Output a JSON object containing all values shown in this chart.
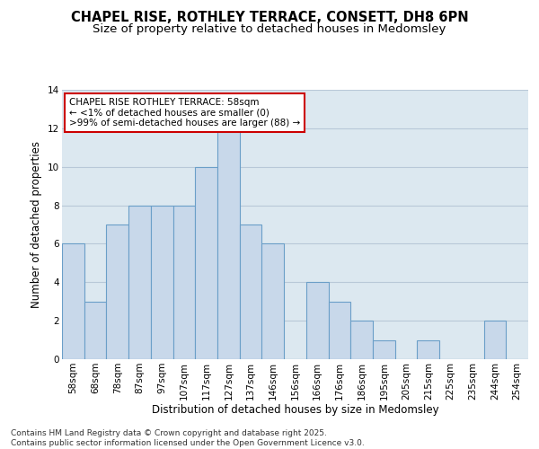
{
  "title_line1": "CHAPEL RISE, ROTHLEY TERRACE, CONSETT, DH8 6PN",
  "title_line2": "Size of property relative to detached houses in Medomsley",
  "xlabel": "Distribution of detached houses by size in Medomsley",
  "ylabel": "Number of detached properties",
  "categories": [
    "58sqm",
    "68sqm",
    "78sqm",
    "87sqm",
    "97sqm",
    "107sqm",
    "117sqm",
    "127sqm",
    "137sqm",
    "146sqm",
    "156sqm",
    "166sqm",
    "176sqm",
    "186sqm",
    "195sqm",
    "205sqm",
    "215sqm",
    "225sqm",
    "235sqm",
    "244sqm",
    "254sqm"
  ],
  "values": [
    6,
    3,
    7,
    8,
    8,
    8,
    10,
    12,
    7,
    6,
    0,
    4,
    3,
    2,
    1,
    0,
    1,
    0,
    0,
    2,
    0
  ],
  "bar_color": "#c8d8ea",
  "bar_edge_color": "#6b9fc8",
  "grid_color": "#b8c8d8",
  "bg_color": "#dce8f0",
  "fig_color": "#ffffff",
  "annotation_line1": "CHAPEL RISE ROTHLEY TERRACE: 58sqm",
  "annotation_line2": "← <1% of detached houses are smaller (0)",
  "annotation_line3": ">99% of semi-detached houses are larger (88) →",
  "annotation_box_fc": "#ffffff",
  "annotation_box_ec": "#cc0000",
  "ylim": [
    0,
    14
  ],
  "yticks": [
    0,
    2,
    4,
    6,
    8,
    10,
    12,
    14
  ],
  "footnote": "Contains HM Land Registry data © Crown copyright and database right 2025.\nContains public sector information licensed under the Open Government Licence v3.0.",
  "title_fontsize": 10.5,
  "subtitle_fontsize": 9.5,
  "xlabel_fontsize": 8.5,
  "ylabel_fontsize": 8.5,
  "tick_fontsize": 7.5,
  "annotation_fontsize": 7.5,
  "footnote_fontsize": 6.5
}
